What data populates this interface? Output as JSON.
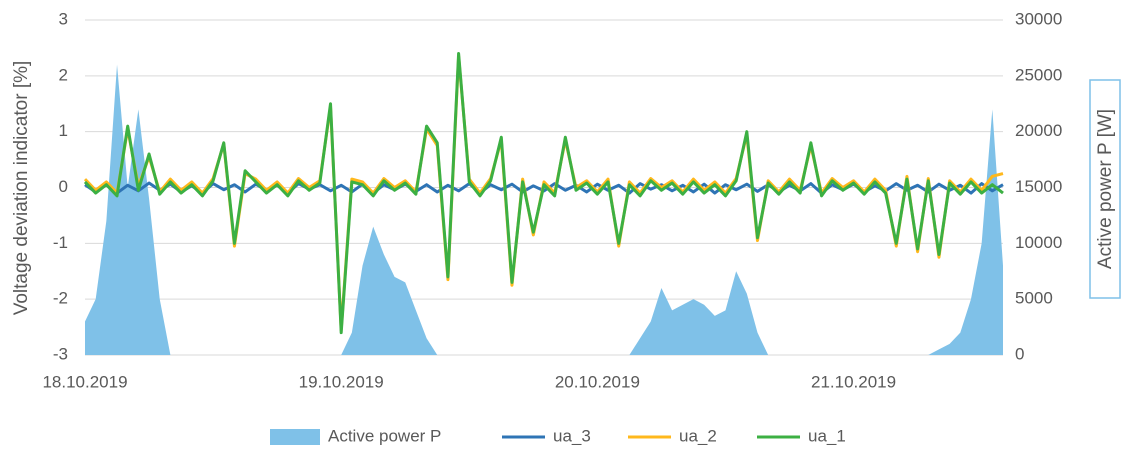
{
  "chart_data": {
    "type": "line",
    "ylabel": "Voltage deviation indicator [%]",
    "y2label": "Active power P [W]",
    "ylim": [
      -3,
      3
    ],
    "yticks": [
      -3,
      -2,
      -1,
      0,
      1,
      2,
      3
    ],
    "y2lim": [
      0,
      30000
    ],
    "y2ticks": [
      0,
      5000,
      10000,
      15000,
      20000,
      25000,
      30000
    ],
    "grid": true,
    "legend": "bottom",
    "categories": [
      "18.10.2019",
      null,
      null,
      null,
      null,
      null,
      null,
      null,
      null,
      null,
      null,
      null,
      null,
      null,
      null,
      null,
      null,
      null,
      null,
      null,
      null,
      null,
      null,
      null,
      "19.10.2019",
      null,
      null,
      null,
      null,
      null,
      null,
      null,
      null,
      null,
      null,
      null,
      null,
      null,
      null,
      null,
      null,
      null,
      null,
      null,
      null,
      null,
      null,
      null,
      "20.10.2019",
      null,
      null,
      null,
      null,
      null,
      null,
      null,
      null,
      null,
      null,
      null,
      null,
      null,
      null,
      null,
      null,
      null,
      null,
      null,
      null,
      null,
      null,
      null,
      "21.10.2019",
      null,
      null,
      null,
      null,
      null,
      null,
      null,
      null,
      null,
      null,
      null,
      null,
      null,
      null
    ],
    "series": [
      {
        "name": "Active power P",
        "color": "#7fc1e8",
        "axis": "y2",
        "style": "area",
        "values": [
          3000,
          5000,
          12000,
          26000,
          15000,
          22000,
          14000,
          5000,
          0,
          0,
          0,
          0,
          0,
          0,
          0,
          0,
          0,
          0,
          0,
          0,
          0,
          0,
          0,
          0,
          0,
          2000,
          8000,
          11500,
          9000,
          7000,
          6500,
          4000,
          1500,
          0,
          0,
          0,
          0,
          0,
          0,
          0,
          0,
          0,
          0,
          0,
          0,
          0,
          0,
          0,
          0,
          0,
          0,
          0,
          1500,
          3000,
          6000,
          4000,
          4500,
          5000,
          4500,
          3500,
          4000,
          7500,
          5500,
          2000,
          0,
          0,
          0,
          0,
          0,
          0,
          0,
          0,
          0,
          0,
          0,
          0,
          0,
          0,
          0,
          0,
          500,
          1000,
          2000,
          5000,
          10000,
          22000,
          8000
        ]
      },
      {
        "name": "ua_3",
        "color": "#2e74b5",
        "values": [
          0.05,
          -0.08,
          0.06,
          -0.1,
          0.04,
          -0.06,
          0.08,
          -0.05,
          0.06,
          -0.08,
          0.03,
          -0.1,
          0.07,
          -0.04,
          0.05,
          -0.08,
          0.06,
          -0.05,
          0.04,
          -0.1,
          0.07,
          -0.03,
          0.05,
          -0.06,
          0.04,
          -0.08,
          0.06,
          -0.1,
          0.05,
          -0.04,
          0.06,
          -0.07,
          0.05,
          -0.08,
          0.04,
          -0.06,
          0.07,
          -0.1,
          0.05,
          -0.04,
          0.06,
          -0.08,
          0.03,
          -0.06,
          0.07,
          -0.05,
          0.04,
          -0.08,
          0.06,
          -0.05,
          0.04,
          -0.1,
          0.07,
          -0.03,
          0.05,
          -0.06,
          0.04,
          -0.08,
          0.06,
          -0.1,
          0.05,
          -0.04,
          0.06,
          -0.07,
          0.05,
          -0.08,
          0.04,
          -0.06,
          0.07,
          -0.1,
          0.05,
          -0.04,
          0.06,
          -0.08,
          0.03,
          -0.06,
          0.07,
          -0.05,
          0.04,
          -0.08,
          0.06,
          -0.05,
          0.04,
          -0.1,
          0.07,
          -0.06,
          0.05
        ]
      },
      {
        "name": "ua_2",
        "color": "#ffb81c",
        "values": [
          0.15,
          -0.05,
          0.1,
          -0.1,
          1.05,
          0.02,
          0.55,
          -0.08,
          0.15,
          -0.05,
          0.1,
          -0.1,
          0.16,
          0.78,
          -1.05,
          0.25,
          0.15,
          -0.05,
          0.1,
          -0.1,
          0.16,
          0.0,
          0.12,
          1.45,
          -2.55,
          0.15,
          0.1,
          -0.1,
          0.16,
          0.0,
          0.12,
          -0.08,
          1.05,
          0.75,
          -1.65,
          2.35,
          0.15,
          -0.1,
          0.16,
          0.85,
          -1.75,
          0.15,
          -0.85,
          0.1,
          -0.1,
          0.85,
          0.0,
          0.12,
          -0.08,
          0.15,
          -1.05,
          0.1,
          -0.1,
          0.16,
          0.0,
          0.12,
          -0.08,
          0.15,
          -0.05,
          0.1,
          -0.1,
          0.16,
          0.95,
          -0.95,
          0.12,
          -0.08,
          0.15,
          -0.05,
          0.75,
          -0.1,
          0.16,
          0.0,
          0.12,
          -0.08,
          0.15,
          -0.05,
          -1.05,
          0.2,
          -1.15,
          0.16,
          -1.25,
          0.12,
          -0.08,
          0.15,
          -0.05,
          0.2,
          0.25
        ]
      },
      {
        "name": "ua_1",
        "color": "#3cb043",
        "values": [
          0.1,
          -0.1,
          0.05,
          -0.15,
          1.1,
          -0.05,
          0.6,
          -0.12,
          0.1,
          -0.1,
          0.05,
          -0.15,
          0.12,
          0.8,
          -1.0,
          0.3,
          0.1,
          -0.1,
          0.05,
          -0.15,
          0.12,
          -0.05,
          0.08,
          1.5,
          -2.6,
          0.1,
          0.05,
          -0.15,
          0.12,
          -0.05,
          0.08,
          -0.12,
          1.1,
          0.8,
          -1.6,
          2.4,
          0.1,
          -0.15,
          0.12,
          0.9,
          -1.7,
          0.1,
          -0.8,
          0.05,
          -0.15,
          0.9,
          -0.05,
          0.08,
          -0.12,
          0.1,
          -1.0,
          0.05,
          -0.15,
          0.12,
          -0.05,
          0.08,
          -0.12,
          0.1,
          -0.1,
          0.05,
          -0.15,
          0.12,
          1.0,
          -0.9,
          0.08,
          -0.12,
          0.1,
          -0.1,
          0.8,
          -0.15,
          0.12,
          -0.05,
          0.08,
          -0.12,
          0.1,
          -0.1,
          -1.0,
          0.15,
          -1.1,
          0.12,
          -1.2,
          0.08,
          -0.12,
          0.1,
          -0.1,
          0.05,
          -0.1
        ]
      }
    ]
  }
}
